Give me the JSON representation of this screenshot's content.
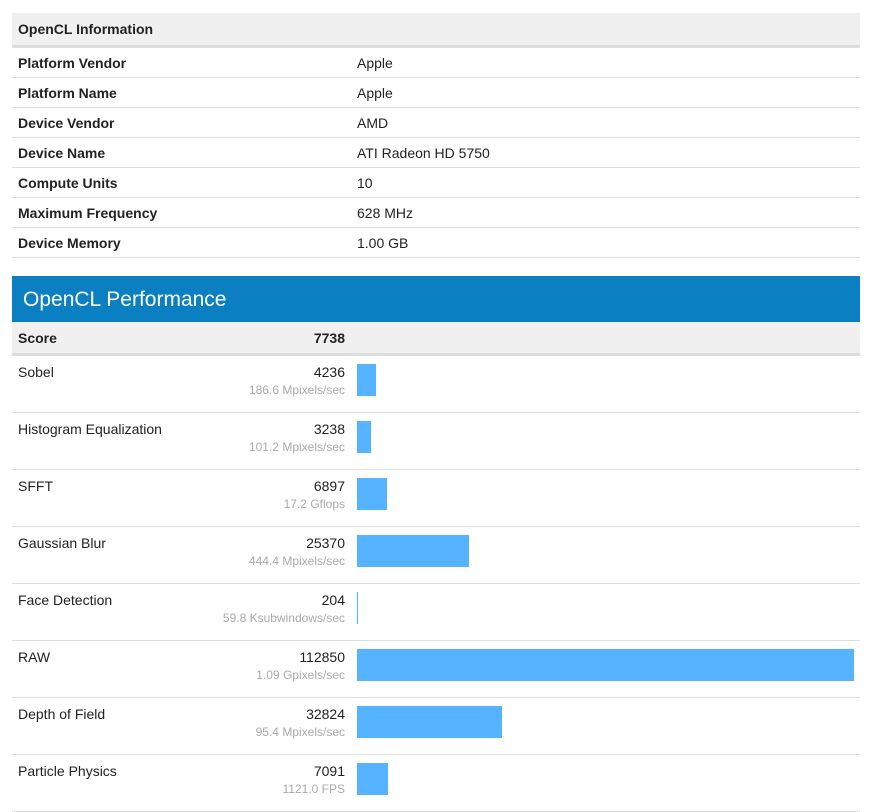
{
  "info": {
    "title": "OpenCL Information",
    "rows": [
      {
        "label": "Platform Vendor",
        "value": "Apple"
      },
      {
        "label": "Platform Name",
        "value": "Apple"
      },
      {
        "label": "Device Vendor",
        "value": "AMD"
      },
      {
        "label": "Device Name",
        "value": "ATI Radeon HD 5750"
      },
      {
        "label": "Compute Units",
        "value": "10"
      },
      {
        "label": "Maximum Frequency",
        "value": "628 MHz"
      },
      {
        "label": "Device Memory",
        "value": "1.00 GB"
      }
    ]
  },
  "perf": {
    "title": "OpenCL Performance",
    "score_label": "Score",
    "score": "7738",
    "bar_color": "#55b3ff",
    "max_score": 112850,
    "benchmarks": [
      {
        "name": "Sobel",
        "score": 4236,
        "rate": "186.6 Mpixels/sec"
      },
      {
        "name": "Histogram Equalization",
        "score": 3238,
        "rate": "101.2 Mpixels/sec"
      },
      {
        "name": "SFFT",
        "score": 6897,
        "rate": "17.2 Gflops"
      },
      {
        "name": "Gaussian Blur",
        "score": 25370,
        "rate": "444.4 Mpixels/sec"
      },
      {
        "name": "Face Detection",
        "score": 204,
        "rate": "59.8 Ksubwindows/sec"
      },
      {
        "name": "RAW",
        "score": 112850,
        "rate": "1.09 Gpixels/sec"
      },
      {
        "name": "Depth of Field",
        "score": 32824,
        "rate": "95.4 Mpixels/sec"
      },
      {
        "name": "Particle Physics",
        "score": 7091,
        "rate": "1121.0 FPS"
      }
    ]
  }
}
